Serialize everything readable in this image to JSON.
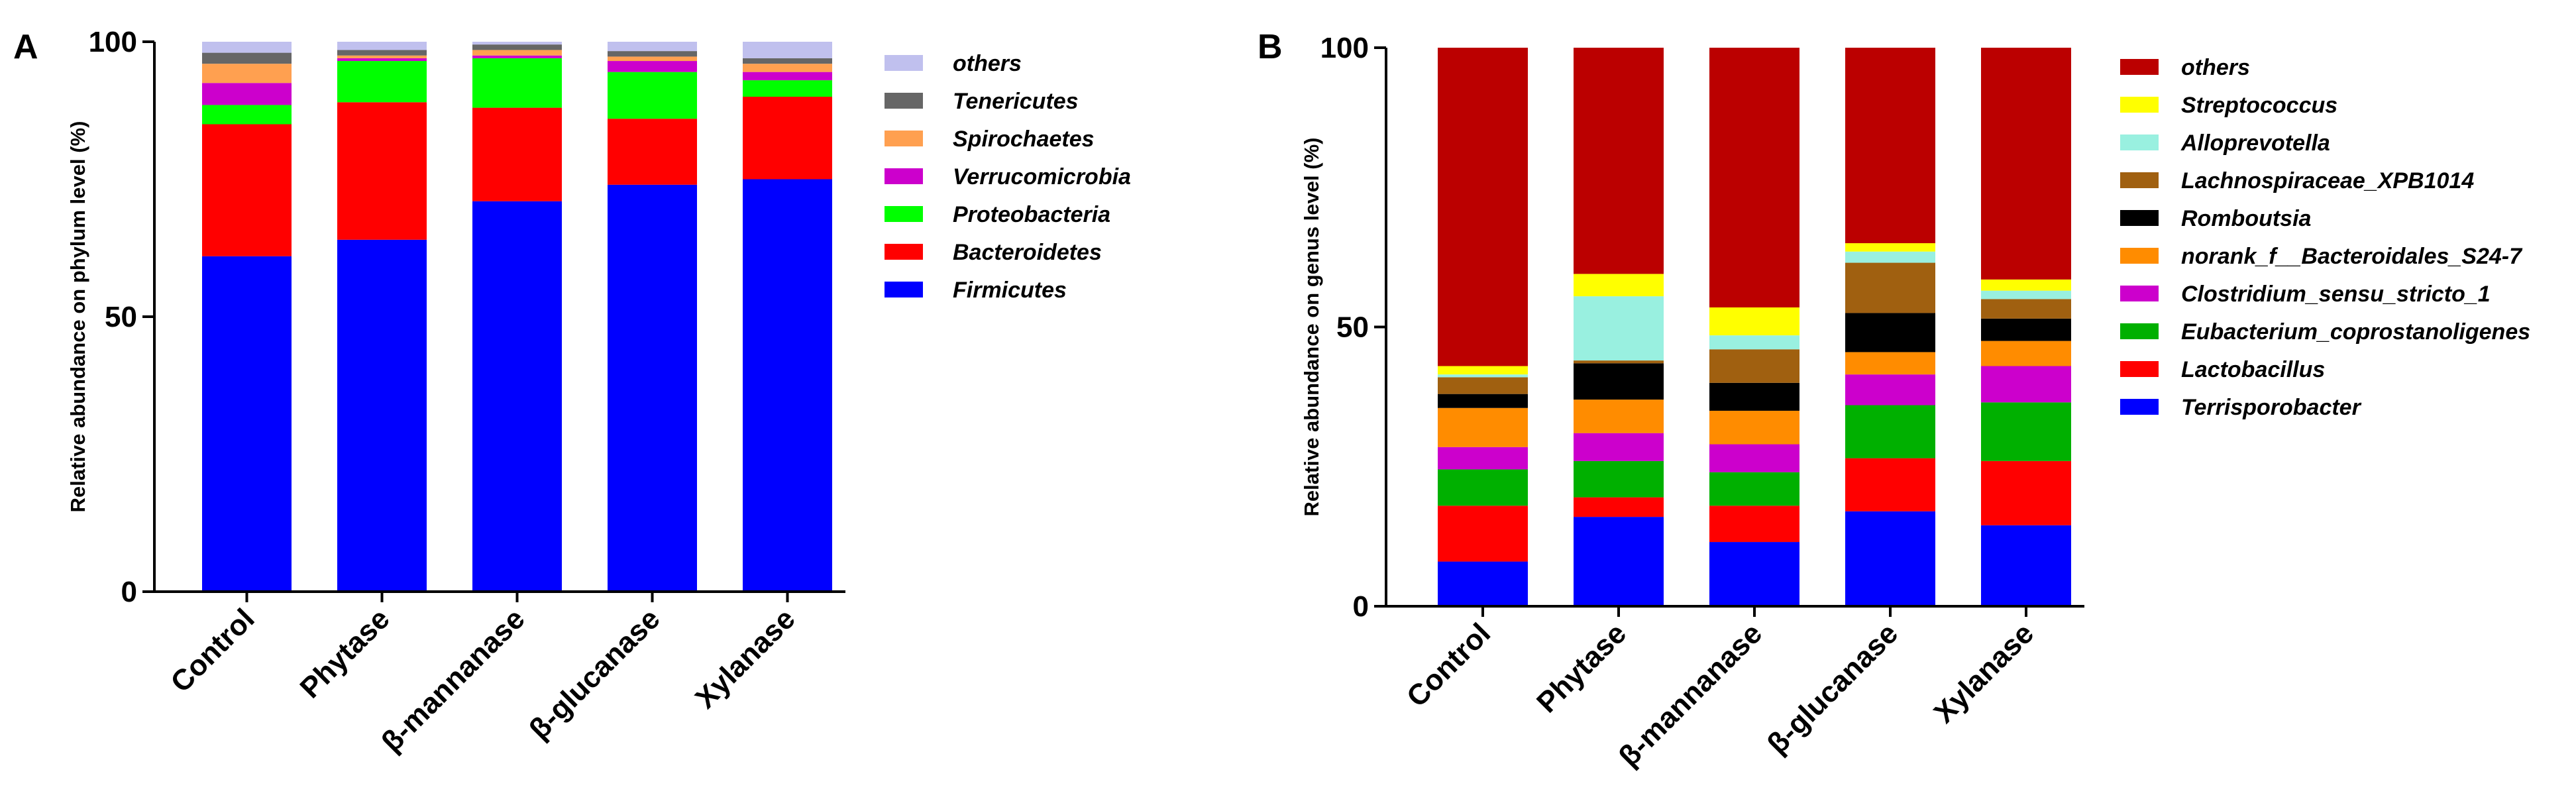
{
  "chart_data": [
    {
      "type": "bar",
      "stacked": true,
      "panel": "A",
      "title": "",
      "xlabel": "",
      "ylabel": "Relative abundance on phylum level (%)",
      "ylim": [
        0,
        100
      ],
      "yticks": [
        0,
        50,
        100
      ],
      "grid": false,
      "legend": "right",
      "categories": [
        "Control",
        "Phytase",
        "β-mannanase",
        "β-glucanase",
        "Xylanase"
      ],
      "series": [
        {
          "name": "Firmicutes",
          "color": "#0000FF",
          "values": [
            61,
            64,
            71,
            74,
            75
          ]
        },
        {
          "name": "Bacteroidetes",
          "color": "#FF0000",
          "values": [
            24,
            25,
            17,
            12,
            15
          ]
        },
        {
          "name": "Proteobacteria",
          "color": "#00FF00",
          "values": [
            3.5,
            7.5,
            9,
            8.5,
            3
          ]
        },
        {
          "name": "Verrucomicrobia",
          "color": "#CC00CC",
          "values": [
            4,
            0.5,
            0.5,
            2,
            1.5
          ]
        },
        {
          "name": "Spirochaetes",
          "color": "#FFA050",
          "values": [
            3.5,
            0.5,
            1,
            0.8,
            1.5
          ]
        },
        {
          "name": "Tenericutes",
          "color": "#666666",
          "values": [
            2,
            1,
            1,
            1,
            1
          ]
        },
        {
          "name": "others",
          "color": "#C0C0EE",
          "values": [
            2,
            1.5,
            0.5,
            1.7,
            3
          ]
        }
      ]
    },
    {
      "type": "bar",
      "stacked": true,
      "panel": "B",
      "title": "",
      "xlabel": "",
      "ylabel": "Relative abundance on genus level (%)",
      "ylim": [
        0,
        100
      ],
      "yticks": [
        0,
        50,
        100
      ],
      "grid": false,
      "legend": "right",
      "categories": [
        "Control",
        "Phytase",
        "β-mannanase",
        "β-glucanase",
        "Xylanase"
      ],
      "series": [
        {
          "name": "Terrisporobacter",
          "color": "#0000FF",
          "values": [
            8,
            16,
            11.5,
            17,
            14.5
          ]
        },
        {
          "name": "Lactobacillus",
          "color": "#FF0000",
          "values": [
            10,
            3.5,
            6.5,
            9.5,
            11.5
          ]
        },
        {
          "name": "Eubacterium_coprostanoligenes",
          "color": "#00B000",
          "values": [
            6.5,
            6.5,
            6,
            9.5,
            10.5
          ]
        },
        {
          "name": "Clostridium_sensu_stricto_1",
          "color": "#CC00CC",
          "values": [
            4,
            5,
            5,
            5.5,
            6.5
          ]
        },
        {
          "name": "norank_f__Bacteroidales_S24-7",
          "color": "#FF8C00",
          "values": [
            7,
            6,
            6,
            4,
            4.5
          ]
        },
        {
          "name": "Romboutsia",
          "color": "#000000",
          "values": [
            2.5,
            6.5,
            5,
            7,
            4
          ]
        },
        {
          "name": "Lachnospiraceae_XPB1014",
          "color": "#A06010",
          "values": [
            3,
            0.5,
            6,
            9,
            3.5
          ]
        },
        {
          "name": "Alloprevotella",
          "color": "#99F0E0",
          "values": [
            0.5,
            11.5,
            2.5,
            2,
            1.5
          ]
        },
        {
          "name": "Streptococcus",
          "color": "#FFFF00",
          "values": [
            1.5,
            4,
            5,
            1.5,
            2
          ]
        },
        {
          "name": "others",
          "color": "#BB0000",
          "values": [
            57,
            40.5,
            46.5,
            35,
            41.5
          ]
        }
      ]
    }
  ]
}
